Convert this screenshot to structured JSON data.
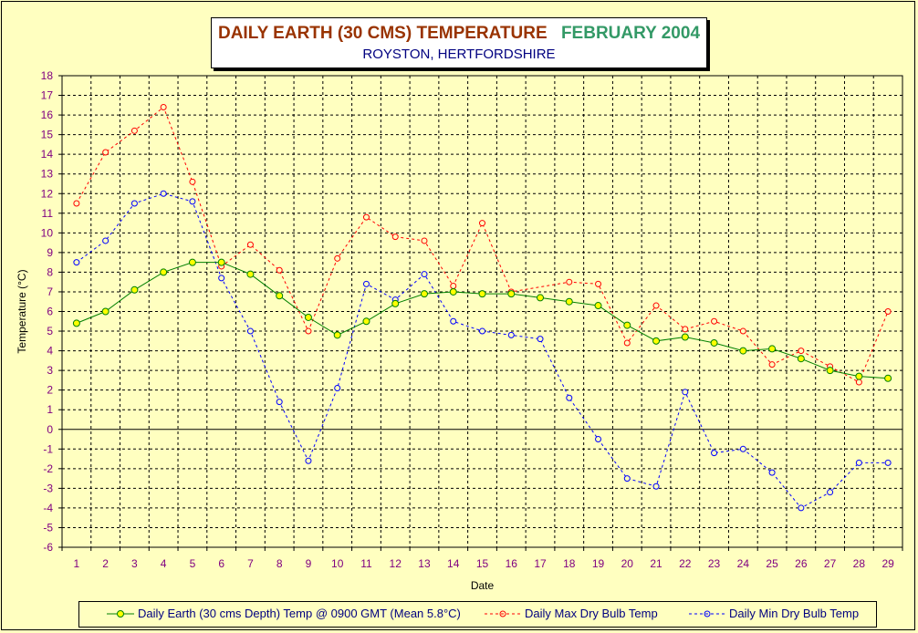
{
  "title": {
    "main": "DAILY EARTH (30 CMS) TEMPERATURE",
    "date": "FEBRUARY 2004",
    "subtitle": "ROYSTON, HERTFORDSHIRE"
  },
  "chart_data": {
    "type": "line",
    "xlabel": "Date",
    "ylabel": "Temperature (°C)",
    "ylim": [
      -6,
      18
    ],
    "y_ticks": [
      -6,
      -5,
      -4,
      -3,
      -2,
      -1,
      0,
      1,
      2,
      3,
      4,
      5,
      6,
      7,
      8,
      9,
      10,
      11,
      12,
      13,
      14,
      15,
      16,
      17,
      18
    ],
    "x": [
      1,
      2,
      3,
      4,
      5,
      6,
      7,
      8,
      9,
      10,
      11,
      12,
      13,
      14,
      15,
      16,
      17,
      18,
      19,
      20,
      21,
      22,
      23,
      24,
      25,
      26,
      27,
      28,
      29
    ],
    "grid": true,
    "legend_position": "bottom",
    "series": [
      {
        "name": "Daily Earth (30 cms Depth) Temp @ 0900 GMT (Mean 5.8°C)",
        "color": "#008000",
        "marker_color": "#ffff00",
        "style": "solid",
        "values": [
          5.4,
          6.0,
          7.1,
          8.0,
          8.5,
          8.5,
          7.9,
          6.8,
          5.7,
          4.8,
          5.5,
          6.4,
          6.9,
          7.0,
          6.9,
          6.9,
          6.7,
          6.5,
          6.3,
          5.3,
          4.5,
          4.7,
          4.4,
          4.0,
          4.1,
          3.6,
          3.0,
          2.7,
          2.6
        ]
      },
      {
        "name": "Daily Max Dry Bulb Temp",
        "color": "#ff0000",
        "style": "dashed",
        "values": [
          11.5,
          14.1,
          15.2,
          16.4,
          12.6,
          8.3,
          9.4,
          8.1,
          5.0,
          8.7,
          10.8,
          9.8,
          9.6,
          7.3,
          10.5,
          7.0,
          null,
          7.5,
          7.4,
          4.4,
          6.3,
          5.1,
          5.5,
          5.0,
          3.3,
          4.0,
          3.2,
          2.4,
          6.0
        ]
      },
      {
        "name": "Daily Min Dry Bulb Temp",
        "color": "#0000ff",
        "style": "dashed",
        "values": [
          8.5,
          9.6,
          11.5,
          12.0,
          11.6,
          7.7,
          5.0,
          1.4,
          -1.6,
          2.1,
          7.4,
          6.6,
          7.9,
          5.5,
          5.0,
          4.8,
          4.6,
          1.6,
          -0.5,
          -2.5,
          -2.9,
          1.9,
          -1.2,
          -1.0,
          -2.2,
          -4.0,
          -3.2,
          -1.7,
          -1.7
        ]
      }
    ]
  }
}
